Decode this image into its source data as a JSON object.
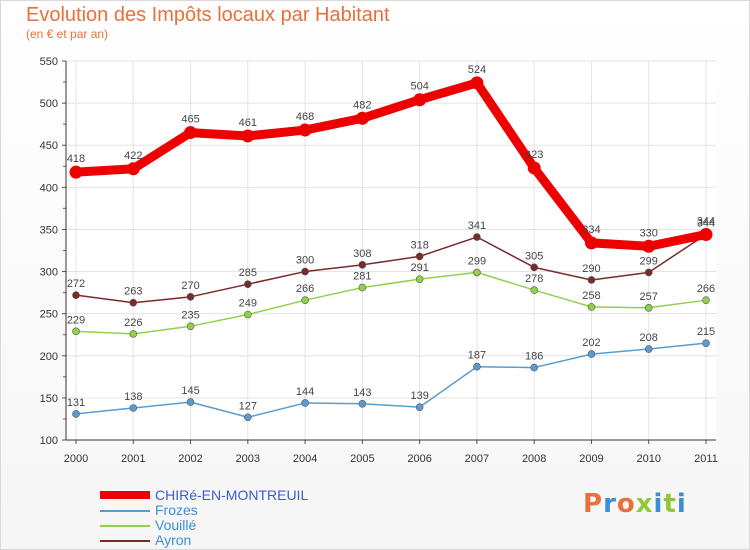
{
  "title": "Evolution des Impôts locaux par Habitant",
  "subtitle": "(en € et par an)",
  "logo": {
    "text": "Proxiti",
    "colors": [
      "#e8703a",
      "#3a8fd6",
      "#e8703a",
      "#8fc93a",
      "#3a8fd6",
      "#8fc93a",
      "#3a8fd6"
    ]
  },
  "chart_data": {
    "type": "line",
    "title": "Evolution des Impôts locaux par Habitant",
    "ylabel": "en € et par an",
    "ylim": [
      100,
      550
    ],
    "yticks": [
      100,
      150,
      200,
      250,
      300,
      350,
      400,
      450,
      500,
      550
    ],
    "x": [
      "2000",
      "2001",
      "2002",
      "2003",
      "2004",
      "2005",
      "2006",
      "2007",
      "2008",
      "2009",
      "2010",
      "2011"
    ],
    "legend_position": "bottom-left",
    "series": [
      {
        "name": "CHIRé-EN-MONTREUIL",
        "color": "#ee0000",
        "width": "thick",
        "values": [
          418,
          422,
          465,
          461,
          468,
          482,
          504,
          524,
          423,
          334,
          330,
          344
        ]
      },
      {
        "name": "Frozes",
        "color": "#5b9ccf",
        "width": "thin",
        "values": [
          131,
          138,
          145,
          127,
          144,
          143,
          139,
          187,
          186,
          202,
          208,
          215
        ]
      },
      {
        "name": "Vouillé",
        "color": "#8fd24a",
        "width": "thin",
        "values": [
          229,
          226,
          235,
          249,
          266,
          281,
          291,
          299,
          278,
          258,
          257,
          266
        ]
      },
      {
        "name": "Ayron",
        "color": "#7a2a2a",
        "width": "thin",
        "values": [
          272,
          263,
          270,
          285,
          300,
          308,
          318,
          341,
          305,
          290,
          299,
          344
        ]
      }
    ]
  }
}
